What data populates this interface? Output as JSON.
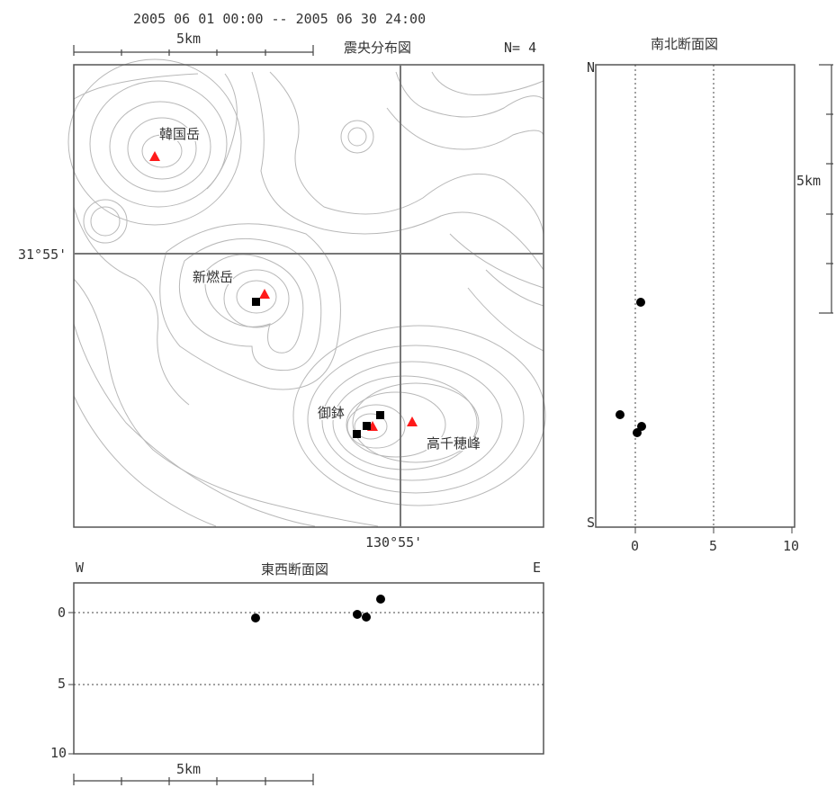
{
  "header": {
    "period": "2005 06 01 00:00 -- 2005 06 30 24:00",
    "map_title": "震央分布図",
    "count": "N= 4",
    "scale_label": "5km"
  },
  "map": {
    "lat_label": "31°55'",
    "lon_label": "130°55'",
    "volcanoes": [
      {
        "name": "韓国岳"
      },
      {
        "name": "新燃岳"
      },
      {
        "name": "御鉢"
      },
      {
        "name": "高千穂峰"
      }
    ],
    "volcano_marker_color": "#ff0000",
    "epicenter_color": "#000000"
  },
  "ns_section": {
    "title": "南北断面図",
    "north": "N",
    "south": "S",
    "scale_label": "5km",
    "x_ticks": [
      "0",
      "5",
      "10"
    ]
  },
  "ew_section": {
    "title": "東西断面図",
    "west": "W",
    "east": "E",
    "scale_label": "5km",
    "y_ticks": [
      "0",
      "5",
      "10"
    ]
  }
}
